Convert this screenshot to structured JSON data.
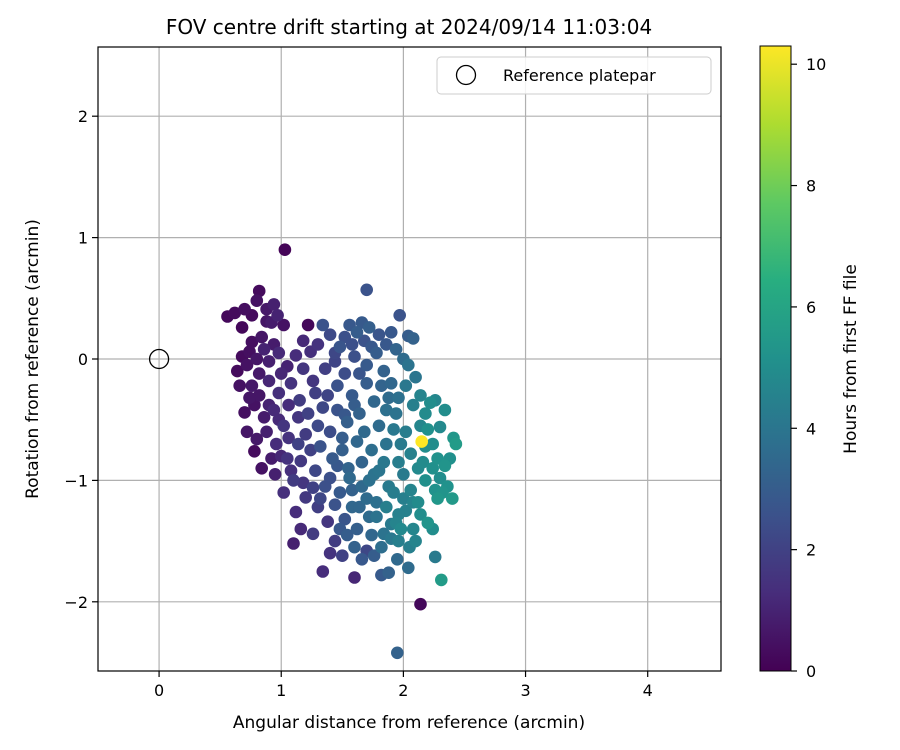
{
  "chart_data": {
    "type": "scatter",
    "title": "FOV centre drift starting at 2024/09/14 11:03:04",
    "xlabel": "Angular distance from reference (arcmin)",
    "ylabel": "Rotation from reference (arcmin)",
    "xlim": [
      -0.5,
      4.6
    ],
    "ylim": [
      -2.57,
      2.57
    ],
    "x_ticks": [
      0,
      1,
      2,
      3,
      4
    ],
    "y_ticks": [
      -2,
      -1,
      0,
      1,
      2
    ],
    "x_tick_labels": [
      "0",
      "1",
      "2",
      "3",
      "4"
    ],
    "y_tick_labels": [
      "−2",
      "−1",
      "0",
      "1",
      "2"
    ],
    "grid": true,
    "legend": {
      "placement": "top-right",
      "entries": [
        "Reference platepar"
      ]
    },
    "reference_point": {
      "name": "Reference platepar",
      "x": 0,
      "y": 0
    },
    "colorbar": {
      "label": "Hours from first FF file",
      "colormap": "viridis",
      "range": [
        0,
        10.3
      ],
      "ticks": [
        0,
        2,
        4,
        6,
        8,
        10
      ],
      "tick_labels": [
        "0",
        "2",
        "4",
        "6",
        "8",
        "10"
      ]
    },
    "points": [
      [
        0.56,
        0.35,
        0.2
      ],
      [
        0.62,
        0.38,
        0.3
      ],
      [
        0.68,
        0.26,
        0.2
      ],
      [
        0.7,
        0.41,
        0.4
      ],
      [
        0.76,
        0.36,
        0.3
      ],
      [
        0.8,
        0.48,
        0.5
      ],
      [
        0.82,
        0.56,
        0.3
      ],
      [
        0.88,
        0.41,
        0.7
      ],
      [
        0.94,
        0.45,
        0.9
      ],
      [
        0.88,
        0.31,
        0.6
      ],
      [
        0.97,
        0.36,
        1.0
      ],
      [
        0.92,
        0.3,
        0.8
      ],
      [
        1.03,
        0.9,
        0.1
      ],
      [
        1.02,
        0.28,
        0.5
      ],
      [
        1.22,
        0.28,
        0.2
      ],
      [
        0.74,
        0.06,
        0.4
      ],
      [
        0.8,
        0.0,
        0.6
      ],
      [
        0.86,
        0.08,
        1.0
      ],
      [
        0.64,
        -0.1,
        0.3
      ],
      [
        0.72,
        -0.05,
        0.5
      ],
      [
        0.9,
        -0.02,
        0.9
      ],
      [
        0.98,
        0.05,
        1.2
      ],
      [
        1.05,
        -0.06,
        1.0
      ],
      [
        1.12,
        0.03,
        1.3
      ],
      [
        1.18,
        -0.08,
        1.6
      ],
      [
        0.76,
        -0.22,
        0.7
      ],
      [
        0.82,
        -0.3,
        0.6
      ],
      [
        0.9,
        -0.18,
        1.1
      ],
      [
        0.98,
        -0.28,
        1.4
      ],
      [
        1.08,
        -0.2,
        1.5
      ],
      [
        1.15,
        -0.34,
        1.8
      ],
      [
        0.7,
        -0.44,
        0.4
      ],
      [
        0.78,
        -0.38,
        0.5
      ],
      [
        0.86,
        -0.48,
        0.8
      ],
      [
        0.94,
        -0.42,
        1.2
      ],
      [
        1.02,
        -0.55,
        1.6
      ],
      [
        0.72,
        -0.6,
        0.6
      ],
      [
        0.8,
        -0.66,
        0.7
      ],
      [
        0.88,
        -0.6,
        0.9
      ],
      [
        0.96,
        -0.7,
        1.3
      ],
      [
        0.78,
        -0.76,
        0.3
      ],
      [
        0.84,
        -0.9,
        0.5
      ],
      [
        0.95,
        -0.95,
        0.9
      ],
      [
        1.05,
        -0.82,
        1.5
      ],
      [
        1.1,
        -1.0,
        1.8
      ],
      [
        1.14,
        -0.7,
        2.0
      ],
      [
        1.02,
        -1.1,
        1.4
      ],
      [
        1.12,
        -1.26,
        1.3
      ],
      [
        1.2,
        -1.14,
        1.7
      ],
      [
        1.28,
        -0.92,
        2.2
      ],
      [
        1.36,
        -1.05,
        2.5
      ],
      [
        1.3,
        -1.22,
        1.9
      ],
      [
        1.38,
        -1.34,
        1.6
      ],
      [
        1.16,
        -1.4,
        1.2
      ],
      [
        1.1,
        -1.52,
        0.9
      ],
      [
        1.26,
        -1.44,
        1.8
      ],
      [
        1.34,
        -1.75,
        1.3
      ],
      [
        1.44,
        -1.5,
        1.8
      ],
      [
        1.5,
        -1.62,
        2.0
      ],
      [
        1.4,
        -1.6,
        1.5
      ],
      [
        1.22,
        -0.45,
        2.0
      ],
      [
        1.3,
        -0.55,
        2.3
      ],
      [
        1.38,
        -0.3,
        2.1
      ],
      [
        1.46,
        -0.42,
        2.6
      ],
      [
        1.32,
        -0.72,
        2.6
      ],
      [
        1.42,
        -0.82,
        2.9
      ],
      [
        1.5,
        -0.65,
        3.0
      ],
      [
        1.55,
        -0.9,
        3.3
      ],
      [
        1.48,
        -1.1,
        2.9
      ],
      [
        1.58,
        -1.22,
        3.4
      ],
      [
        1.62,
        -1.4,
        3.1
      ],
      [
        1.52,
        -1.32,
        2.7
      ],
      [
        1.26,
        -0.18,
        1.6
      ],
      [
        1.36,
        -0.08,
        1.9
      ],
      [
        1.44,
        0.05,
        2.2
      ],
      [
        1.52,
        -0.12,
        2.4
      ],
      [
        1.6,
        0.02,
        2.5
      ],
      [
        1.34,
        0.28,
        2.6
      ],
      [
        1.4,
        0.2,
        2.3
      ],
      [
        1.48,
        0.1,
        2.7
      ],
      [
        1.56,
        0.28,
        2.8
      ],
      [
        1.62,
        0.22,
        3.0
      ],
      [
        1.66,
        0.3,
        2.9
      ],
      [
        1.72,
        0.26,
        3.1
      ],
      [
        1.7,
        0.57,
        2.6
      ],
      [
        1.24,
        0.06,
        1.4
      ],
      [
        1.18,
        0.15,
        1.2
      ],
      [
        1.3,
        0.12,
        1.5
      ],
      [
        1.58,
        -0.3,
        2.9
      ],
      [
        1.64,
        -0.45,
        3.2
      ],
      [
        1.7,
        -0.2,
        3.0
      ],
      [
        1.76,
        -0.35,
        3.4
      ],
      [
        1.68,
        -0.6,
        3.5
      ],
      [
        1.74,
        -0.75,
        3.7
      ],
      [
        1.8,
        -0.55,
        3.6
      ],
      [
        1.86,
        -0.7,
        3.9
      ],
      [
        1.66,
        -0.85,
        3.3
      ],
      [
        1.72,
        -1.0,
        3.8
      ],
      [
        1.8,
        -0.92,
        4.0
      ],
      [
        1.88,
        -1.05,
        4.2
      ],
      [
        1.7,
        -1.15,
        3.6
      ],
      [
        1.78,
        -1.3,
        3.9
      ],
      [
        1.86,
        -1.22,
        4.4
      ],
      [
        1.94,
        -1.35,
        4.6
      ],
      [
        1.74,
        -1.45,
        3.4
      ],
      [
        1.82,
        -1.55,
        3.7
      ],
      [
        1.9,
        -1.48,
        4.1
      ],
      [
        1.98,
        -1.4,
        4.8
      ],
      [
        1.66,
        -1.65,
        2.8
      ],
      [
        1.7,
        -1.58,
        2.2
      ],
      [
        1.6,
        -1.8,
        1.1
      ],
      [
        1.76,
        -1.62,
        3.0
      ],
      [
        1.82,
        -1.78,
        2.9
      ],
      [
        1.88,
        -1.76,
        3.2
      ],
      [
        1.95,
        -1.65,
        3.5
      ],
      [
        2.04,
        -1.72,
        3.6
      ],
      [
        1.9,
        -0.2,
        3.4
      ],
      [
        1.96,
        -0.32,
        3.8
      ],
      [
        1.84,
        -0.1,
        3.2
      ],
      [
        1.78,
        0.05,
        3.0
      ],
      [
        1.86,
        0.12,
        2.8
      ],
      [
        1.94,
        0.08,
        3.3
      ],
      [
        2.0,
        0.0,
        3.6
      ],
      [
        2.04,
        -0.05,
        3.9
      ],
      [
        1.8,
        0.2,
        2.7
      ],
      [
        1.9,
        0.22,
        2.8
      ],
      [
        1.97,
        0.36,
        2.6
      ],
      [
        2.04,
        0.19,
        3.0
      ],
      [
        2.08,
        0.17,
        3.2
      ],
      [
        2.02,
        -0.22,
        4.1
      ],
      [
        2.08,
        -0.38,
        4.4
      ],
      [
        2.1,
        -0.15,
        4.0
      ],
      [
        2.14,
        -0.3,
        4.6
      ],
      [
        2.18,
        -0.45,
        4.9
      ],
      [
        2.22,
        -0.36,
        5.0
      ],
      [
        2.2,
        -0.58,
        5.1
      ],
      [
        2.02,
        -0.6,
        4.3
      ],
      [
        2.06,
        -0.78,
        4.5
      ],
      [
        2.12,
        -0.9,
        4.8
      ],
      [
        2.18,
        -0.72,
        5.0
      ],
      [
        2.0,
        -0.95,
        4.2
      ],
      [
        2.06,
        -1.08,
        4.6
      ],
      [
        2.12,
        -1.18,
        4.9
      ],
      [
        2.18,
        -1.0,
        5.1
      ],
      [
        2.02,
        -1.25,
        4.5
      ],
      [
        2.08,
        -1.4,
        4.7
      ],
      [
        2.14,
        -1.28,
        5.0
      ],
      [
        2.2,
        -1.35,
        5.3
      ],
      [
        2.1,
        -1.5,
        4.6
      ],
      [
        2.05,
        -1.55,
        4.4
      ],
      [
        2.26,
        -1.08,
        5.2
      ],
      [
        2.3,
        -0.98,
        5.0
      ],
      [
        2.32,
        -1.1,
        5.3
      ],
      [
        2.28,
        -1.15,
        5.4
      ],
      [
        2.36,
        -1.05,
        5.2
      ],
      [
        2.4,
        -1.15,
        5.5
      ],
      [
        2.38,
        -0.82,
        5.1
      ],
      [
        2.41,
        -0.65,
        5.4
      ],
      [
        2.43,
        -0.7,
        5.6
      ],
      [
        2.34,
        -0.42,
        5.0
      ],
      [
        2.3,
        -0.56,
        4.8
      ],
      [
        2.26,
        -0.34,
        4.7
      ],
      [
        2.28,
        -0.82,
        5.2
      ],
      [
        2.34,
        -0.88,
        5.3
      ],
      [
        2.26,
        -1.63,
        4.2
      ],
      [
        2.31,
        -1.82,
        5.6
      ],
      [
        2.24,
        -1.4,
        5.0
      ],
      [
        2.15,
        -0.68,
        10.3
      ],
      [
        2.14,
        -2.02,
        0.2
      ],
      [
        1.95,
        -2.42,
        3.2
      ],
      [
        1.5,
        -0.75,
        3.1
      ],
      [
        1.56,
        -0.98,
        3.5
      ],
      [
        1.62,
        -0.68,
        3.4
      ],
      [
        1.46,
        -0.22,
        2.6
      ],
      [
        1.54,
        -0.52,
        3.1
      ],
      [
        1.6,
        -0.38,
        3.0
      ],
      [
        1.86,
        -0.42,
        3.8
      ],
      [
        1.92,
        -0.58,
        4.1
      ],
      [
        1.96,
        -0.85,
        4.3
      ],
      [
        1.92,
        -1.1,
        4.3
      ],
      [
        1.84,
        -0.85,
        4.1
      ],
      [
        1.76,
        -0.95,
        3.9
      ],
      [
        1.64,
        -1.22,
        3.4
      ],
      [
        1.58,
        -1.08,
        3.2
      ],
      [
        1.44,
        -1.2,
        2.6
      ],
      [
        1.4,
        -0.6,
        2.4
      ],
      [
        1.34,
        -0.4,
        2.2
      ],
      [
        1.28,
        -0.28,
        1.9
      ],
      [
        1.2,
        -0.62,
        1.8
      ],
      [
        1.14,
        -0.48,
        1.6
      ],
      [
        1.06,
        -0.38,
        1.3
      ],
      [
        1.0,
        -0.12,
        1.1
      ],
      [
        0.94,
        0.12,
        0.8
      ],
      [
        0.84,
        0.18,
        0.6
      ],
      [
        0.76,
        0.14,
        0.4
      ],
      [
        0.68,
        0.02,
        0.3
      ],
      [
        0.66,
        -0.22,
        0.5
      ],
      [
        0.74,
        -0.32,
        0.6
      ],
      [
        0.82,
        -0.12,
        0.7
      ],
      [
        0.9,
        -0.38,
        1.0
      ],
      [
        0.98,
        -0.5,
        1.2
      ],
      [
        1.06,
        -0.65,
        1.5
      ],
      [
        1.0,
        -0.8,
        1.1
      ],
      [
        0.92,
        -0.82,
        0.8
      ],
      [
        1.08,
        -0.92,
        1.4
      ],
      [
        1.16,
        -0.84,
        1.7
      ],
      [
        1.24,
        -0.75,
        2.0
      ],
      [
        1.18,
        -1.02,
        1.6
      ],
      [
        1.26,
        -1.06,
        2.0
      ],
      [
        1.32,
        -1.15,
        2.2
      ],
      [
        1.4,
        -0.98,
        2.5
      ],
      [
        1.46,
        -0.88,
        2.8
      ],
      [
        1.52,
        -0.46,
        2.8
      ],
      [
        1.64,
        -0.12,
        2.7
      ],
      [
        1.7,
        -0.05,
        2.9
      ],
      [
        1.74,
        0.1,
        2.8
      ],
      [
        1.68,
        0.15,
        2.6
      ],
      [
        1.58,
        0.12,
        2.5
      ],
      [
        1.52,
        0.18,
        2.5
      ],
      [
        1.44,
        -0.02,
        2.1
      ],
      [
        1.82,
        -0.22,
        3.3
      ],
      [
        1.88,
        -0.32,
        3.6
      ],
      [
        1.94,
        -0.45,
        3.9
      ],
      [
        1.98,
        -0.7,
        4.2
      ],
      [
        2.0,
        -1.15,
        4.4
      ],
      [
        1.96,
        -1.28,
        4.5
      ],
      [
        1.9,
        -1.36,
        4.2
      ],
      [
        1.84,
        -1.44,
        3.9
      ],
      [
        1.78,
        -1.18,
        3.8
      ],
      [
        1.72,
        -1.3,
        3.6
      ],
      [
        1.66,
        -1.05,
        3.5
      ],
      [
        1.6,
        -1.55,
        3.2
      ],
      [
        1.54,
        -1.45,
        3.0
      ],
      [
        1.48,
        -1.4,
        2.8
      ],
      [
        1.96,
        -1.5,
        4.4
      ],
      [
        2.08,
        -1.18,
        4.6
      ],
      [
        2.16,
        -0.85,
        4.9
      ],
      [
        2.24,
        -0.9,
        5.1
      ],
      [
        2.24,
        -0.7,
        5.0
      ],
      [
        2.14,
        -0.55,
        4.7
      ]
    ]
  }
}
